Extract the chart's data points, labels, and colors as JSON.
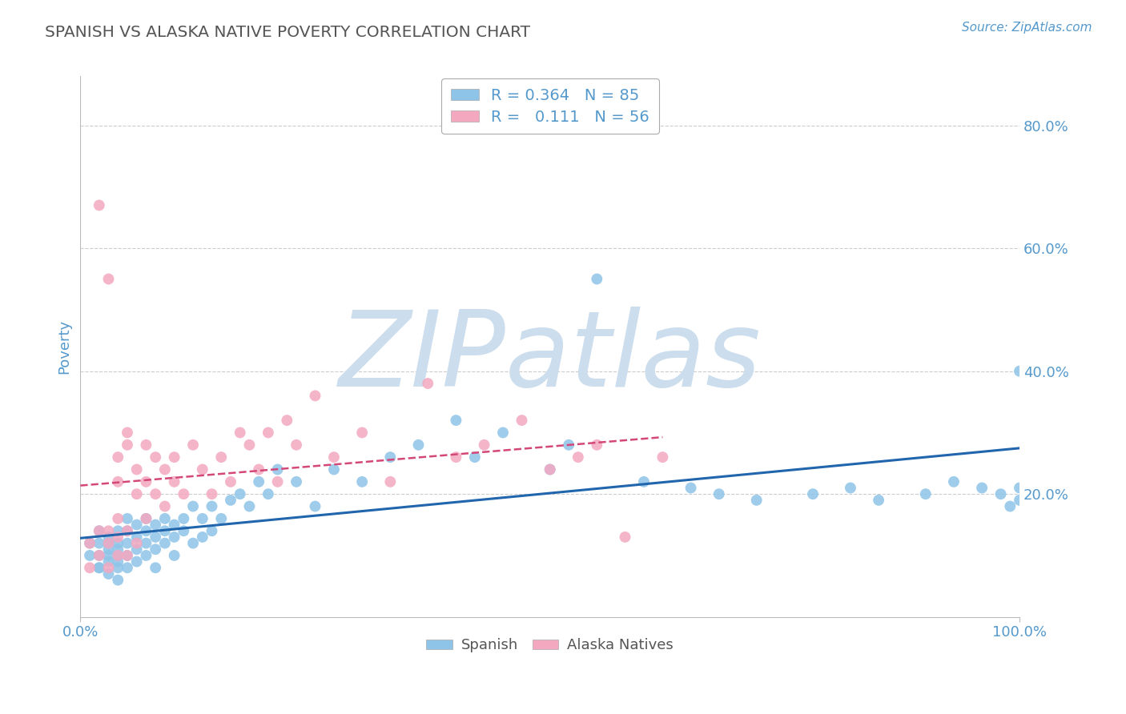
{
  "title": "SPANISH VS ALASKA NATIVE POVERTY CORRELATION CHART",
  "source_text": "Source: ZipAtlas.com",
  "ylabel": "Poverty",
  "xlim": [
    0,
    1.0
  ],
  "ylim": [
    0,
    0.88
  ],
  "ytick_positions": [
    0.2,
    0.4,
    0.6,
    0.8
  ],
  "ytick_labels": [
    "20.0%",
    "40.0%",
    "60.0%",
    "80.0%"
  ],
  "R_spanish": 0.364,
  "N_spanish": 85,
  "R_alaska": 0.111,
  "N_alaska": 56,
  "spanish_color": "#8ec4e8",
  "alaska_color": "#f4a8c0",
  "trend_spanish_color": "#2166ac",
  "trend_alaska_color": "#d44878",
  "watermark_text": "ZIPatlas",
  "watermark_color": "#ccdded",
  "background_color": "#ffffff",
  "grid_color": "#cccccc",
  "title_color": "#555555",
  "tick_label_color": "#5599cc",
  "legend_label_color": "#5599cc",
  "bottom_legend_color": "#555555",
  "spanish_x": [
    0.01,
    0.01,
    0.02,
    0.02,
    0.02,
    0.02,
    0.02,
    0.03,
    0.03,
    0.03,
    0.03,
    0.03,
    0.03,
    0.04,
    0.04,
    0.04,
    0.04,
    0.04,
    0.04,
    0.04,
    0.05,
    0.05,
    0.05,
    0.05,
    0.05,
    0.06,
    0.06,
    0.06,
    0.06,
    0.07,
    0.07,
    0.07,
    0.07,
    0.08,
    0.08,
    0.08,
    0.08,
    0.09,
    0.09,
    0.09,
    0.1,
    0.1,
    0.1,
    0.11,
    0.11,
    0.12,
    0.12,
    0.13,
    0.13,
    0.14,
    0.14,
    0.15,
    0.16,
    0.17,
    0.18,
    0.19,
    0.2,
    0.21,
    0.23,
    0.25,
    0.27,
    0.3,
    0.33,
    0.36,
    0.4,
    0.42,
    0.45,
    0.5,
    0.52,
    0.55,
    0.6,
    0.65,
    0.68,
    0.72,
    0.78,
    0.82,
    0.85,
    0.9,
    0.93,
    0.96,
    0.98,
    0.99,
    1.0,
    1.0,
    1.0
  ],
  "spanish_y": [
    0.1,
    0.12,
    0.08,
    0.1,
    0.12,
    0.14,
    0.08,
    0.09,
    0.11,
    0.13,
    0.07,
    0.1,
    0.12,
    0.08,
    0.1,
    0.12,
    0.14,
    0.06,
    0.09,
    0.11,
    0.1,
    0.12,
    0.14,
    0.08,
    0.16,
    0.11,
    0.13,
    0.15,
    0.09,
    0.12,
    0.14,
    0.1,
    0.16,
    0.11,
    0.13,
    0.15,
    0.08,
    0.12,
    0.14,
    0.16,
    0.13,
    0.15,
    0.1,
    0.14,
    0.16,
    0.12,
    0.18,
    0.13,
    0.16,
    0.14,
    0.18,
    0.16,
    0.19,
    0.2,
    0.18,
    0.22,
    0.2,
    0.24,
    0.22,
    0.18,
    0.24,
    0.22,
    0.26,
    0.28,
    0.32,
    0.26,
    0.3,
    0.24,
    0.28,
    0.55,
    0.22,
    0.21,
    0.2,
    0.19,
    0.2,
    0.21,
    0.19,
    0.2,
    0.22,
    0.21,
    0.2,
    0.18,
    0.19,
    0.21,
    0.4
  ],
  "alaska_x": [
    0.01,
    0.01,
    0.02,
    0.02,
    0.02,
    0.03,
    0.03,
    0.03,
    0.03,
    0.04,
    0.04,
    0.04,
    0.04,
    0.04,
    0.05,
    0.05,
    0.05,
    0.05,
    0.06,
    0.06,
    0.06,
    0.07,
    0.07,
    0.07,
    0.08,
    0.08,
    0.09,
    0.09,
    0.1,
    0.1,
    0.11,
    0.12,
    0.13,
    0.14,
    0.15,
    0.16,
    0.17,
    0.18,
    0.19,
    0.2,
    0.21,
    0.22,
    0.23,
    0.25,
    0.27,
    0.3,
    0.33,
    0.37,
    0.4,
    0.43,
    0.47,
    0.5,
    0.53,
    0.55,
    0.58,
    0.62
  ],
  "alaska_y": [
    0.08,
    0.12,
    0.1,
    0.67,
    0.14,
    0.12,
    0.55,
    0.14,
    0.08,
    0.16,
    0.26,
    0.22,
    0.1,
    0.13,
    0.28,
    0.1,
    0.3,
    0.14,
    0.2,
    0.24,
    0.12,
    0.28,
    0.22,
    0.16,
    0.2,
    0.26,
    0.24,
    0.18,
    0.22,
    0.26,
    0.2,
    0.28,
    0.24,
    0.2,
    0.26,
    0.22,
    0.3,
    0.28,
    0.24,
    0.3,
    0.22,
    0.32,
    0.28,
    0.36,
    0.26,
    0.3,
    0.22,
    0.38,
    0.26,
    0.28,
    0.32,
    0.24,
    0.26,
    0.28,
    0.13,
    0.26
  ]
}
